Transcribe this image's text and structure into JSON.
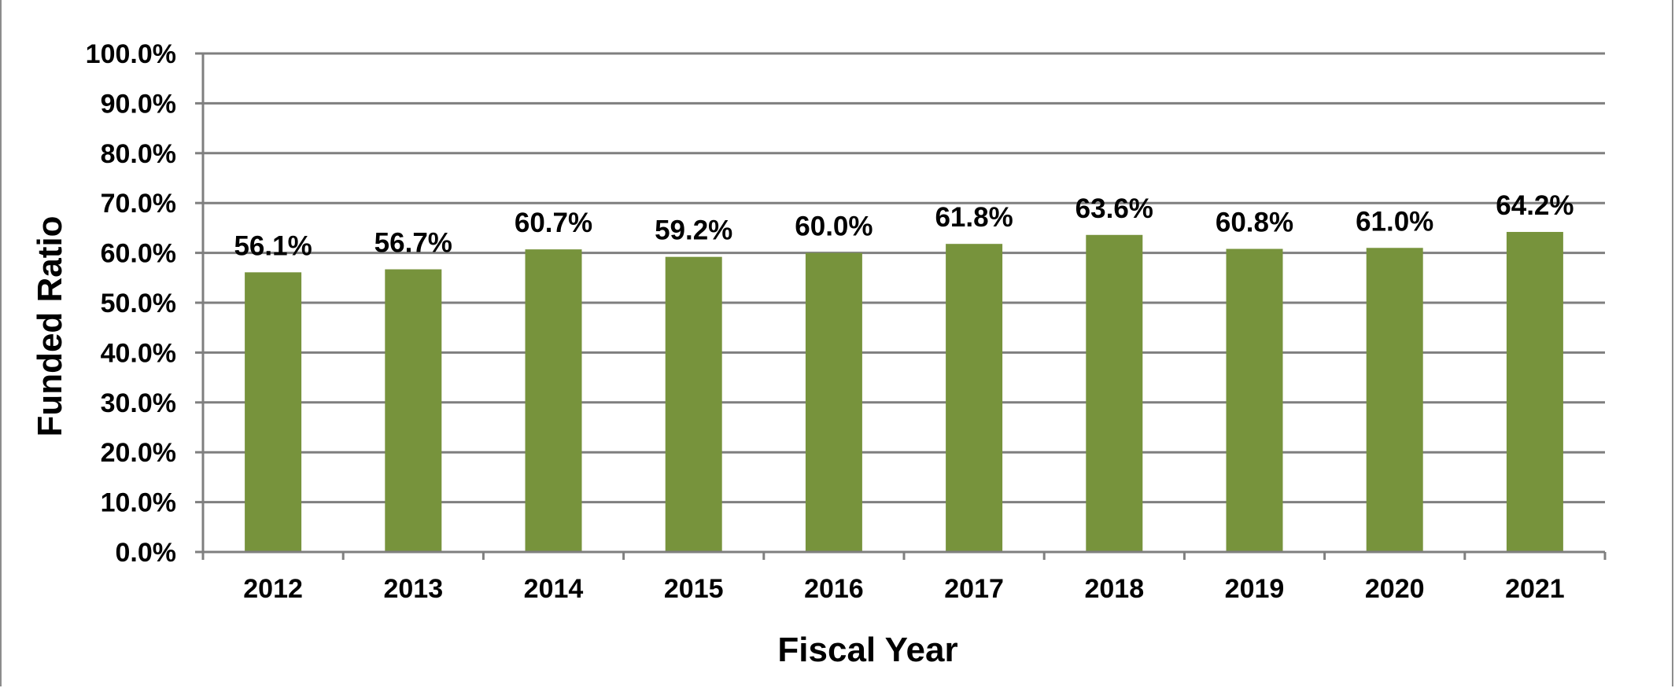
{
  "chart_data": {
    "type": "bar",
    "title": "",
    "xlabel": "Fiscal Year",
    "ylabel": "Funded Ratio",
    "categories": [
      "2012",
      "2013",
      "2014",
      "2015",
      "2016",
      "2017",
      "2018",
      "2019",
      "2020",
      "2021"
    ],
    "values": [
      56.1,
      56.7,
      60.7,
      59.2,
      60.0,
      61.8,
      63.6,
      60.8,
      61.0,
      64.2
    ],
    "data_labels": [
      "56.1%",
      "56.7%",
      "60.7%",
      "59.2%",
      "60.0%",
      "61.8%",
      "63.6%",
      "60.8%",
      "61.0%",
      "64.2%"
    ],
    "ylim": [
      0,
      100
    ],
    "yticks": [
      "0.0%",
      "10.0%",
      "20.0%",
      "30.0%",
      "40.0%",
      "50.0%",
      "60.0%",
      "70.0%",
      "80.0%",
      "90.0%",
      "100.0%"
    ],
    "grid": true,
    "legend": "none",
    "bar_color": "#77933c",
    "grid_color": "#7f7f7f"
  }
}
